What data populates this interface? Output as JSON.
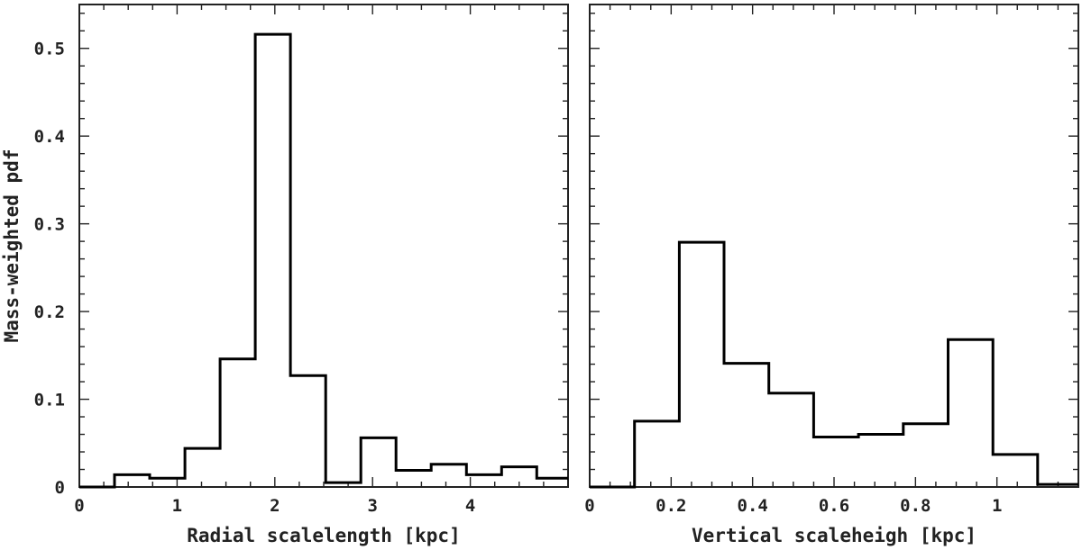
{
  "chart_data": [
    {
      "type": "histogram",
      "xlabel": "Radial scalelength [kpc]",
      "ylabel": "Mass-weighted pdf",
      "xlim": [
        0,
        5
      ],
      "ylim": [
        0,
        0.55
      ],
      "xticks": [
        0,
        1,
        2,
        3,
        4
      ],
      "xtick_labels": [
        "0",
        "1",
        "2",
        "3",
        "4"
      ],
      "yticks": [
        0,
        0.1,
        0.2,
        0.3,
        0.4,
        0.5
      ],
      "ytick_labels": [
        "0",
        "0.1",
        "0.2",
        "0.3",
        "0.4",
        "0.5"
      ],
      "bin_edges": [
        0,
        0.36,
        0.72,
        1.08,
        1.44,
        1.8,
        2.16,
        2.52,
        2.88,
        3.24,
        3.6,
        3.96,
        4.32,
        4.68,
        5.0
      ],
      "values": [
        0.0,
        0.014,
        0.01,
        0.044,
        0.146,
        0.516,
        0.127,
        0.005,
        0.056,
        0.019,
        0.026,
        0.014,
        0.023,
        0.01
      ],
      "grid": false
    },
    {
      "type": "histogram",
      "xlabel": "Vertical scaleheigh [kpc]",
      "xlim": [
        0,
        1.2
      ],
      "ylim": [
        0,
        0.55
      ],
      "xticks": [
        0,
        0.2,
        0.4,
        0.6,
        0.8,
        1
      ],
      "xtick_labels": [
        "0",
        "0.2",
        "0.4",
        "0.6",
        "0.8",
        "1"
      ],
      "yticks": [
        0,
        0.1,
        0.2,
        0.3,
        0.4,
        0.5
      ],
      "bin_edges": [
        0,
        0.11,
        0.22,
        0.33,
        0.44,
        0.55,
        0.66,
        0.77,
        0.88,
        0.99,
        1.1,
        1.2
      ],
      "values": [
        0.0,
        0.075,
        0.279,
        0.141,
        0.107,
        0.057,
        0.06,
        0.072,
        0.168,
        0.037,
        0.003
      ],
      "grid": false
    }
  ]
}
